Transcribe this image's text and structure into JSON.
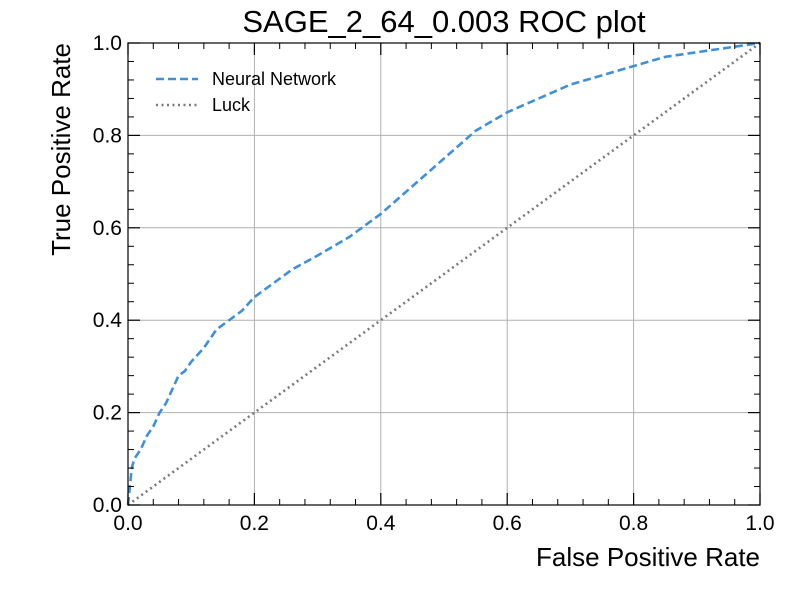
{
  "chart_data": {
    "type": "line",
    "title": "SAGE_2_64_0.003 ROC plot",
    "xlabel": "False Positive Rate",
    "ylabel": "True Positive Rate",
    "xlim": [
      0.0,
      1.0
    ],
    "ylim": [
      0.0,
      1.0
    ],
    "x_ticks": [
      "0.0",
      "0.2",
      "0.4",
      "0.6",
      "0.8",
      "1.0"
    ],
    "y_ticks": [
      "0.0",
      "0.2",
      "0.4",
      "0.6",
      "0.8",
      "1.0"
    ],
    "grid": true,
    "legend_position": "upper-left",
    "series": [
      {
        "name": "Neural Network",
        "style": "dashed",
        "color": "#3f90da",
        "x": [
          0.0,
          0.003,
          0.006,
          0.01,
          0.015,
          0.02,
          0.03,
          0.04,
          0.05,
          0.06,
          0.07,
          0.08,
          0.09,
          0.1,
          0.12,
          0.14,
          0.16,
          0.18,
          0.2,
          0.23,
          0.26,
          0.3,
          0.35,
          0.4,
          0.45,
          0.5,
          0.55,
          0.6,
          0.65,
          0.7,
          0.75,
          0.8,
          0.85,
          0.9,
          0.95,
          1.0
        ],
        "y": [
          0.0,
          0.04,
          0.08,
          0.1,
          0.11,
          0.12,
          0.15,
          0.17,
          0.2,
          0.22,
          0.25,
          0.28,
          0.29,
          0.31,
          0.34,
          0.38,
          0.4,
          0.42,
          0.45,
          0.48,
          0.51,
          0.54,
          0.58,
          0.63,
          0.69,
          0.75,
          0.81,
          0.85,
          0.88,
          0.91,
          0.93,
          0.95,
          0.97,
          0.98,
          0.99,
          1.0
        ]
      },
      {
        "name": "Luck",
        "style": "dotted",
        "color": "#7a7a7a",
        "x": [
          0.0,
          1.0
        ],
        "y": [
          0.0,
          1.0
        ]
      }
    ]
  }
}
